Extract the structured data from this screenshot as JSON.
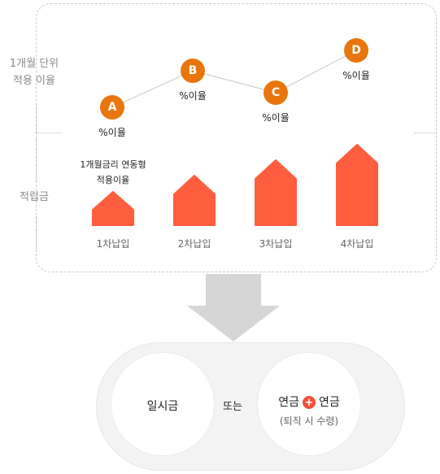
{
  "left_labels": {
    "rate_line1": "1개월 단위",
    "rate_line2": "적용 이율",
    "deposit": "적립금"
  },
  "points": [
    {
      "badge": "A",
      "rate": "%이율"
    },
    {
      "badge": "B",
      "rate": "%이율"
    },
    {
      "badge": "C",
      "rate": "%이율"
    },
    {
      "badge": "D",
      "rate": "%이율"
    }
  ],
  "annotation": {
    "line1": "1개월금리 연동형",
    "line2": "적용이율"
  },
  "bars": [
    {
      "label": "1차납입"
    },
    {
      "label": "2차납입"
    },
    {
      "label": "3차납입"
    },
    {
      "label": "4차납입"
    }
  ],
  "result": {
    "left": "일시금",
    "middle": "또는",
    "right_a": "연금",
    "plus": "+",
    "right_b": "연금",
    "right_sub": "(퇴직 시 수령)"
  },
  "colors": {
    "badge": "#e8760c",
    "bar": "#ff5e3e",
    "arrow": "#d6d6d6",
    "plus": "#f0523a"
  }
}
